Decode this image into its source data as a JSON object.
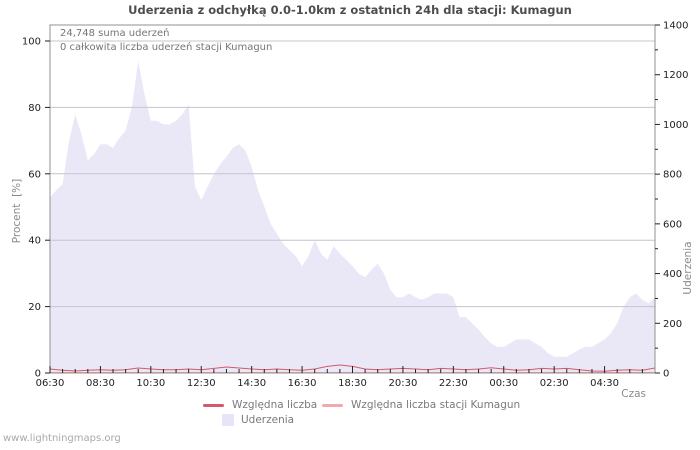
{
  "title": "Uderzenia z odchyłką 0.0-1.0km z ostatnich 24h dla stacji: Kumagun",
  "annotations": {
    "total": "24,748 suma uderzeń",
    "station": "0 całkowita liczba uderzeń stacji Kumagun"
  },
  "watermark": "www.lightningmaps.org",
  "axes": {
    "left": {
      "label": "Procent  [%]",
      "ticks": [
        0,
        20,
        40,
        60,
        80,
        100
      ],
      "range": [
        0,
        100
      ]
    },
    "right": {
      "label": "Uderzenia",
      "ticks": [
        0,
        200,
        400,
        600,
        800,
        1000,
        1200,
        1400
      ],
      "minor_step": 100,
      "range": [
        0,
        1400
      ]
    },
    "x": {
      "label": "Czas",
      "tick_labels": [
        "06:30",
        "08:30",
        "10:30",
        "12:30",
        "14:30",
        "16:30",
        "18:30",
        "20:30",
        "22:30",
        "00:30",
        "02:30",
        "04:30"
      ],
      "major_step_minutes": 120,
      "minor_step_minutes": 30,
      "range_minutes": [
        0,
        1440
      ]
    }
  },
  "legend": [
    {
      "label": "Względna liczba",
      "swatch": "line",
      "color": "#d4596a"
    },
    {
      "label": "Względna liczba stacji Kumagun",
      "swatch": "line",
      "color": "#f2a7ae"
    },
    {
      "label": "Uderzenia",
      "swatch": "area",
      "color": "#e6e4f6"
    }
  ],
  "colors": {
    "area_fill": "#eae8f7",
    "line_primary": "#d4596a",
    "line_station": "#f2a7ae",
    "grid": "#c4c4cf",
    "border": "#909090",
    "tick": "#222222"
  },
  "chart_data": {
    "type": "area",
    "title": "Uderzenia z odchyłką 0.0-1.0km z ostatnich 24h dla stacji: Kumagun",
    "xlabel": "Czas",
    "ylabel_left": "Procent  [%]",
    "ylabel_right": "Uderzenia",
    "ylim_left": [
      0,
      100
    ],
    "ylim_right": [
      0,
      1400
    ],
    "x_start": "06:30",
    "grid": true,
    "legend_position": "bottom",
    "series": [
      {
        "name": "Uderzenia",
        "type": "area",
        "axis": "right",
        "step_minutes": 15,
        "values": [
          705,
          735,
          760,
          930,
          1040,
          960,
          855,
          880,
          920,
          920,
          905,
          945,
          975,
          1070,
          1255,
          1120,
          1015,
          1015,
          1000,
          1000,
          1015,
          1040,
          1080,
          750,
          695,
          750,
          800,
          840,
          870,
          905,
          920,
          895,
          830,
          735,
          670,
          600,
          560,
          520,
          495,
          470,
          430,
          470,
          535,
          480,
          455,
          510,
          480,
          455,
          430,
          400,
          385,
          415,
          440,
          400,
          335,
          305,
          305,
          320,
          305,
          295,
          305,
          320,
          320,
          320,
          305,
          225,
          225,
          200,
          175,
          145,
          120,
          105,
          105,
          120,
          135,
          135,
          135,
          120,
          105,
          80,
          65,
          65,
          65,
          80,
          95,
          105,
          105,
          120,
          135,
          160,
          200,
          265,
          305,
          320,
          295,
          280,
          305
        ]
      },
      {
        "name": "Względna liczba",
        "type": "line",
        "axis": "left",
        "step_minutes": 30,
        "values": [
          1.2,
          0.8,
          0.6,
          0.8,
          1.0,
          0.8,
          1.0,
          1.5,
          1.2,
          1.0,
          1.0,
          1.2,
          1.0,
          1.4,
          1.8,
          1.5,
          1.2,
          1.0,
          1.2,
          1.0,
          0.8,
          1.2,
          2.0,
          2.4,
          2.0,
          1.2,
          1.0,
          1.2,
          1.4,
          1.2,
          1.0,
          1.4,
          1.2,
          1.0,
          1.2,
          1.6,
          1.2,
          0.8,
          1.0,
          1.4,
          1.2,
          1.4,
          1.0,
          0.6,
          0.5,
          0.8,
          1.0,
          0.8,
          1.5
        ]
      },
      {
        "name": "Względna liczba stacji Kumagun",
        "type": "line",
        "axis": "left",
        "constant": 0
      }
    ]
  }
}
